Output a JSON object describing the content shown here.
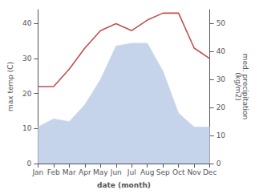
{
  "chart_data": {
    "type": "line",
    "categories": [
      "Jan",
      "Feb",
      "Mar",
      "Apr",
      "May",
      "Jun",
      "Jul",
      "Aug",
      "Sep",
      "Oct",
      "Nov",
      "Dec"
    ],
    "xlabel": "date (month)",
    "ylabel": "max temp (C)",
    "y2label": "med. precipitation\n(kg/m2)",
    "series": [
      {
        "type": "area",
        "axis": "y2",
        "color": "#c5d4ea",
        "values": [
          13,
          16,
          15,
          21,
          30,
          42,
          43,
          43,
          33,
          18,
          13,
          13
        ]
      },
      {
        "type": "line",
        "color": "#c0504d",
        "values": [
          22,
          22,
          27,
          33,
          38,
          40,
          38,
          41,
          43,
          43,
          33,
          30
        ]
      }
    ],
    "ylim": [
      0,
      44
    ],
    "yticks": [
      0,
      10,
      20,
      30,
      40
    ],
    "y2lim": [
      0,
      55
    ],
    "y2ticks": [
      0,
      10,
      20,
      30,
      40,
      50
    ],
    "grid": false
  }
}
